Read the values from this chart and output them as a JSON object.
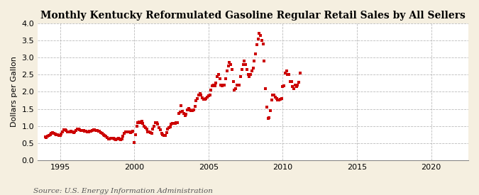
{
  "title": "Monthly Kentucky Reformulated Gasoline Regular Retail Sales by All Sellers",
  "ylabel": "Dollars per Gallon",
  "source": "Source: U.S. Energy Information Administration",
  "background_color": "#F5EFE0",
  "plot_background_color": "#FFFFFF",
  "line_color": "#CC0000",
  "marker": "s",
  "marker_size": 2.5,
  "ylim": [
    0.0,
    4.0
  ],
  "xlim_start": 1993.5,
  "xlim_end": 2022.5,
  "yticks": [
    0.0,
    0.5,
    1.0,
    1.5,
    2.0,
    2.5,
    3.0,
    3.5,
    4.0
  ],
  "xticks": [
    1995,
    2000,
    2005,
    2010,
    2015,
    2020
  ],
  "grid_color": "#AAAAAA",
  "grid_linestyle": "--",
  "title_fontsize": 10,
  "label_fontsize": 8,
  "tick_fontsize": 8,
  "source_fontsize": 7.5,
  "data": {
    "dates": [
      1994.0,
      1994.083,
      1994.167,
      1994.25,
      1994.333,
      1994.417,
      1994.5,
      1994.583,
      1994.667,
      1994.75,
      1994.833,
      1994.917,
      1995.0,
      1995.083,
      1995.167,
      1995.25,
      1995.333,
      1995.417,
      1995.5,
      1995.583,
      1995.667,
      1995.75,
      1995.833,
      1995.917,
      1996.0,
      1996.083,
      1996.167,
      1996.25,
      1996.333,
      1996.417,
      1996.5,
      1996.583,
      1996.667,
      1996.75,
      1996.833,
      1996.917,
      1997.0,
      1997.083,
      1997.167,
      1997.25,
      1997.333,
      1997.417,
      1997.5,
      1997.583,
      1997.667,
      1997.75,
      1997.833,
      1997.917,
      1998.0,
      1998.083,
      1998.167,
      1998.25,
      1998.333,
      1998.417,
      1998.5,
      1998.583,
      1998.667,
      1998.75,
      1998.833,
      1998.917,
      1999.0,
      1999.083,
      1999.167,
      1999.25,
      1999.333,
      1999.417,
      1999.5,
      1999.583,
      1999.667,
      1999.75,
      1999.833,
      1999.917,
      2000.0,
      2000.083,
      2000.167,
      2000.25,
      2000.333,
      2000.417,
      2000.5,
      2000.583,
      2000.667,
      2000.75,
      2000.833,
      2000.917,
      2001.0,
      2001.083,
      2001.167,
      2001.25,
      2001.333,
      2001.417,
      2001.5,
      2001.583,
      2001.667,
      2001.75,
      2001.833,
      2001.917,
      2002.0,
      2002.083,
      2002.167,
      2002.25,
      2002.333,
      2002.417,
      2002.5,
      2002.583,
      2002.667,
      2002.75,
      2002.833,
      2002.917,
      2003.0,
      2003.083,
      2003.167,
      2003.25,
      2003.333,
      2003.417,
      2003.5,
      2003.583,
      2003.667,
      2003.75,
      2003.833,
      2003.917,
      2004.0,
      2004.083,
      2004.167,
      2004.25,
      2004.333,
      2004.417,
      2004.5,
      2004.583,
      2004.667,
      2004.75,
      2004.833,
      2004.917,
      2005.0,
      2005.083,
      2005.167,
      2005.25,
      2005.333,
      2005.417,
      2005.5,
      2005.583,
      2005.667,
      2005.75,
      2005.833,
      2005.917,
      2006.0,
      2006.083,
      2006.167,
      2006.25,
      2006.333,
      2006.417,
      2006.5,
      2006.583,
      2006.667,
      2006.75,
      2006.833,
      2006.917,
      2007.0,
      2007.083,
      2007.167,
      2007.25,
      2007.333,
      2007.417,
      2007.5,
      2007.583,
      2007.667,
      2007.75,
      2007.833,
      2007.917,
      2008.0,
      2008.083,
      2008.167,
      2008.25,
      2008.333,
      2008.417,
      2008.5,
      2008.583,
      2008.667,
      2008.75,
      2008.833,
      2008.917,
      2009.0,
      2009.083,
      2009.167,
      2009.25,
      2009.333,
      2009.417,
      2009.5,
      2009.583,
      2009.667,
      2009.75,
      2009.833,
      2009.917,
      2010.0,
      2010.083,
      2010.167,
      2010.25,
      2010.333,
      2010.417,
      2010.5,
      2010.583,
      2010.667,
      2010.75,
      2010.833,
      2010.917,
      2011.0,
      2011.083,
      2011.167
    ],
    "values": [
      0.68,
      0.67,
      0.7,
      0.73,
      0.75,
      0.78,
      0.8,
      0.79,
      0.77,
      0.75,
      0.74,
      0.72,
      0.73,
      0.76,
      0.82,
      0.88,
      0.89,
      0.87,
      0.83,
      0.82,
      0.83,
      0.84,
      0.82,
      0.8,
      0.82,
      0.87,
      0.92,
      0.9,
      0.88,
      0.86,
      0.87,
      0.86,
      0.84,
      0.85,
      0.83,
      0.82,
      0.85,
      0.84,
      0.87,
      0.88,
      0.88,
      0.87,
      0.87,
      0.85,
      0.84,
      0.8,
      0.78,
      0.74,
      0.73,
      0.7,
      0.67,
      0.63,
      0.63,
      0.65,
      0.65,
      0.64,
      0.62,
      0.6,
      0.62,
      0.64,
      0.62,
      0.6,
      0.61,
      0.71,
      0.78,
      0.82,
      0.83,
      0.83,
      0.82,
      0.8,
      0.82,
      0.84,
      0.52,
      0.75,
      1.0,
      1.1,
      1.12,
      1.1,
      1.14,
      1.08,
      1.0,
      0.95,
      0.9,
      0.82,
      0.82,
      0.8,
      0.79,
      0.9,
      1.0,
      1.1,
      1.1,
      1.05,
      0.95,
      0.88,
      0.78,
      0.75,
      0.73,
      0.73,
      0.81,
      0.9,
      0.95,
      0.98,
      1.05,
      1.08,
      1.08,
      1.07,
      1.09,
      1.1,
      1.37,
      1.4,
      1.6,
      1.42,
      1.37,
      1.3,
      1.35,
      1.47,
      1.52,
      1.47,
      1.45,
      1.45,
      1.47,
      1.57,
      1.73,
      1.8,
      1.9,
      1.95,
      1.9,
      1.82,
      1.78,
      1.78,
      1.8,
      1.85,
      1.88,
      1.9,
      2.04,
      2.18,
      2.2,
      2.18,
      2.25,
      2.45,
      2.5,
      2.38,
      2.2,
      2.18,
      2.2,
      2.2,
      2.38,
      2.6,
      2.75,
      2.85,
      2.8,
      2.65,
      2.3,
      2.05,
      2.1,
      2.2,
      2.2,
      2.2,
      2.45,
      2.65,
      2.8,
      2.9,
      2.8,
      2.65,
      2.5,
      2.45,
      2.5,
      2.6,
      2.7,
      2.9,
      3.1,
      3.38,
      3.55,
      3.7,
      3.65,
      3.5,
      3.4,
      2.9,
      2.1,
      1.55,
      1.22,
      1.25,
      1.45,
      1.75,
      1.9,
      1.9,
      1.85,
      1.8,
      1.75,
      1.75,
      1.78,
      1.8,
      2.15,
      2.18,
      2.55,
      2.6,
      2.5,
      2.5,
      2.3,
      2.3,
      2.15,
      2.1,
      2.2,
      2.15,
      2.2,
      2.28,
      2.55
    ]
  }
}
